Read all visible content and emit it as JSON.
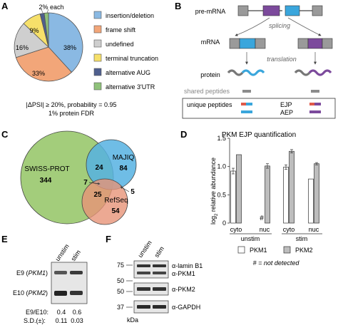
{
  "panels": {
    "a": "A",
    "b": "B",
    "c": "C",
    "d": "D",
    "e": "E",
    "f": "F"
  },
  "panel_a": {
    "pie_labels": {
      "small": "2% each",
      "insertion": "38%",
      "frameshift": "33%",
      "undefined": "16%",
      "terminal": "9%"
    },
    "legend": [
      {
        "label": "insertion/deletion",
        "color": "#8ab9e3"
      },
      {
        "label": "frame shift",
        "color": "#f2a679"
      },
      {
        "label": "undefined",
        "color": "#cfcfcf"
      },
      {
        "label": "terminal truncation",
        "color": "#f6e06a"
      },
      {
        "label": "alternative AUG",
        "color": "#4f5f8e"
      },
      {
        "label": "alternative 3'UTR",
        "color": "#8fc27a"
      }
    ],
    "caption_line1": "|ΔPSI| ≥ 20%, probability = 0.95",
    "caption_line2": "1% protein FDR"
  },
  "panel_b": {
    "pre_mrna": "pre-mRNA",
    "splicing": "splicing",
    "mrna": "mRNA",
    "translation": "translation",
    "protein": "protein",
    "shared": "shared peptides",
    "unique": "unique peptides",
    "ejp": "EJP",
    "aep": "AEP",
    "colors": {
      "exon_gray": "#9a9a9a",
      "exon_blue": "#3aa6dc",
      "exon_purple": "#7c4a9c",
      "shared_bar": "#8c8c8c",
      "red_bar": "#e05a4a"
    }
  },
  "panel_c": {
    "swissprot": "SWISS-PROT",
    "swissprot_n": "344",
    "majiq": "MAJIQ",
    "majiq_n": "84",
    "refseq": "RefSeq",
    "refseq_n": "54",
    "sm": "24",
    "sr": "25",
    "smr": "7",
    "mr": "5",
    "colors": {
      "swissprot": "#a3cd7b",
      "majiq": "#56b1e2",
      "refseq": "#e79378"
    }
  },
  "chart_data": {
    "type": "bar",
    "title": "PKM EJP quantification",
    "ylabel_main": "log",
    "ylabel_sub": "2",
    "ylabel_rest": " relative abundance",
    "ylim": [
      0,
      1.5
    ],
    "yticks": [
      "0",
      "0.5",
      "1.0",
      "1.5"
    ],
    "categories": [
      "cyto",
      "nuc",
      "cyto",
      "nuc"
    ],
    "groups": [
      "unstim",
      "stim"
    ],
    "series": [
      {
        "name": "PKM1",
        "values": [
          0.92,
          null,
          0.99,
          0.78
        ],
        "errors": [
          0.05,
          null,
          0.04,
          0.0
        ],
        "color": "#ffffff"
      },
      {
        "name": "PKM2",
        "values": [
          1.21,
          1.01,
          1.27,
          1.05
        ],
        "errors": [
          0.0,
          0.04,
          0.03,
          0.02
        ],
        "color": "#bdbdbd"
      }
    ],
    "not_detected_mark": "#",
    "footnote": "# = not detected"
  },
  "panel_e": {
    "lanes": [
      "unstim",
      "stim"
    ],
    "e9": "E9 (",
    "e9_it": "PKM1",
    "e10": "E10 (",
    "e10_it": "PKM2",
    "close": ")",
    "ratio_label": "E9/E10:",
    "ratio_values": [
      "0.4",
      "0.6"
    ],
    "sd_label": "S.D.(±):",
    "sd_values": [
      "0.11",
      "0.03"
    ]
  },
  "panel_f": {
    "lanes": [
      "unstim",
      "stim"
    ],
    "markers": [
      "75",
      "50",
      "50",
      "37"
    ],
    "antibodies": [
      "α-lamin B1",
      "α-PKM1",
      "α-PKM2",
      "α-GAPDH"
    ],
    "unit": "kDa"
  }
}
